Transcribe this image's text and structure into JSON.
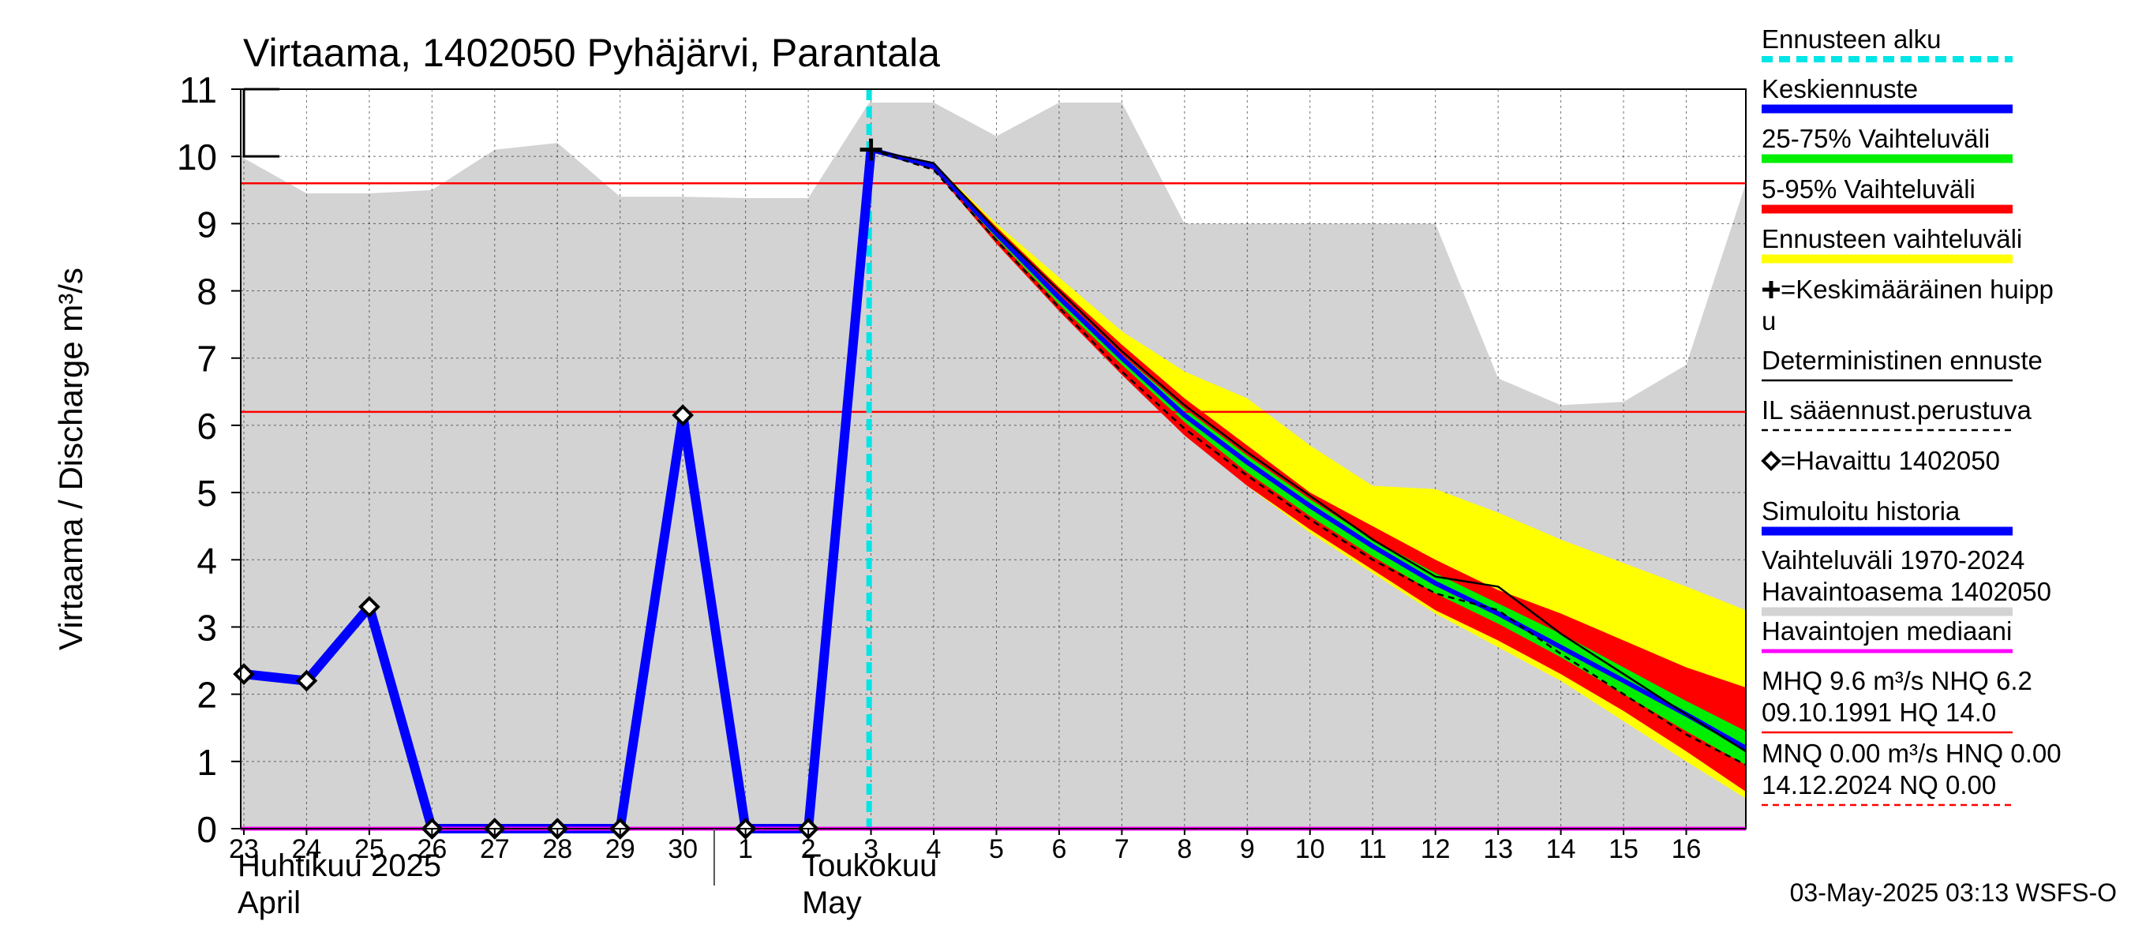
{
  "chart_data": {
    "type": "area",
    "title": "Virtaama, 1402050 Pyhäjärvi, Parantala",
    "ylabel": "Virtaama / Discharge    m³/s",
    "ylim": [
      0,
      11
    ],
    "yticks": [
      0,
      1,
      2,
      3,
      4,
      5,
      6,
      7,
      8,
      9,
      10,
      11
    ],
    "x_domain": [
      -0.05,
      23.95
    ],
    "x_ticks": [
      {
        "x": 0,
        "label": "23"
      },
      {
        "x": 1,
        "label": "24"
      },
      {
        "x": 2,
        "label": "25"
      },
      {
        "x": 3,
        "label": "26"
      },
      {
        "x": 4,
        "label": "27"
      },
      {
        "x": 5,
        "label": "28"
      },
      {
        "x": 6,
        "label": "29"
      },
      {
        "x": 7,
        "label": "30"
      },
      {
        "x": 8,
        "label": "1"
      },
      {
        "x": 9,
        "label": "2"
      },
      {
        "x": 10,
        "label": "3"
      },
      {
        "x": 11,
        "label": "4"
      },
      {
        "x": 12,
        "label": "5"
      },
      {
        "x": 13,
        "label": "6"
      },
      {
        "x": 14,
        "label": "7"
      },
      {
        "x": 15,
        "label": "8"
      },
      {
        "x": 16,
        "label": "9"
      },
      {
        "x": 17,
        "label": "10"
      },
      {
        "x": 18,
        "label": "11"
      },
      {
        "x": 19,
        "label": "12"
      },
      {
        "x": 20,
        "label": "13"
      },
      {
        "x": 21,
        "label": "14"
      },
      {
        "x": 22,
        "label": "15"
      },
      {
        "x": 23,
        "label": "16"
      }
    ],
    "month_labels": [
      {
        "x": 0,
        "fi": "Huhtikuu  2025",
        "en": "April"
      },
      {
        "x": 9,
        "fi": "Toukokuu",
        "en": "May"
      }
    ],
    "month_divider_x": 7.5,
    "forecast_start_x": 9.97,
    "historical_range": {
      "x": [
        -0.05,
        1,
        2,
        3,
        4,
        5,
        6,
        7,
        8,
        9,
        9.97,
        11,
        12,
        13,
        14,
        15,
        16,
        17,
        18,
        19,
        20,
        21,
        22,
        23,
        23.95
      ],
      "upper": [
        10.0,
        9.45,
        9.45,
        9.5,
        10.1,
        10.2,
        9.4,
        9.4,
        9.38,
        9.38,
        10.8,
        10.8,
        10.3,
        10.8,
        10.8,
        9.0,
        9.0,
        9.0,
        9.0,
        9.0,
        6.7,
        6.3,
        6.35,
        6.9,
        9.6
      ],
      "lower": [
        0,
        0,
        0,
        0,
        0,
        0,
        0,
        0,
        0,
        0,
        0,
        0,
        0,
        0,
        0,
        0,
        0,
        0,
        0,
        0,
        0,
        0,
        0,
        0,
        0
      ]
    },
    "forecast_range": {
      "x": [
        10,
        11,
        12,
        13,
        14,
        15,
        16,
        17,
        18,
        19,
        20,
        21,
        22,
        23,
        23.95
      ],
      "upper": [
        10.1,
        9.9,
        9.0,
        8.2,
        7.4,
        6.8,
        6.4,
        5.7,
        5.1,
        5.05,
        4.7,
        4.3,
        3.95,
        3.6,
        3.25
      ],
      "lower": [
        10.1,
        9.8,
        8.7,
        7.7,
        6.8,
        5.9,
        5.1,
        4.4,
        3.8,
        3.2,
        2.7,
        2.2,
        1.6,
        1.0,
        0.45
      ]
    },
    "range_5_95": {
      "x": [
        10,
        11,
        12,
        13,
        14,
        15,
        16,
        17,
        18,
        19,
        20,
        21,
        22,
        23,
        23.95
      ],
      "upper": [
        10.1,
        9.9,
        8.95,
        8.05,
        7.2,
        6.4,
        5.7,
        5.0,
        4.5,
        4.0,
        3.55,
        3.2,
        2.8,
        2.4,
        2.1
      ],
      "lower": [
        10.1,
        9.8,
        8.7,
        7.7,
        6.75,
        5.85,
        5.1,
        4.45,
        3.85,
        3.25,
        2.8,
        2.3,
        1.75,
        1.15,
        0.55
      ]
    },
    "range_25_75": {
      "x": [
        10,
        11,
        12,
        13,
        14,
        15,
        16,
        17,
        18,
        19,
        20,
        21,
        22,
        23,
        23.95
      ],
      "upper": [
        10.1,
        9.88,
        8.88,
        7.95,
        7.05,
        6.25,
        5.55,
        4.9,
        4.3,
        3.8,
        3.35,
        2.9,
        2.4,
        1.9,
        1.45
      ],
      "lower": [
        10.1,
        9.82,
        8.78,
        7.8,
        6.9,
        6.05,
        5.3,
        4.65,
        4.05,
        3.5,
        3.05,
        2.55,
        2.0,
        1.45,
        0.95
      ]
    },
    "series": [
      {
        "name": "Simuloitu historia",
        "color": "#0000ff",
        "x": [
          0,
          1,
          2,
          3,
          4,
          5,
          6,
          7,
          8,
          9,
          10
        ],
        "y": [
          2.3,
          2.2,
          3.3,
          0.0,
          0.0,
          0.0,
          0.0,
          6.15,
          0.0,
          0.0,
          10.1
        ]
      },
      {
        "name": "Keskiennuste",
        "color": "#0000ff",
        "x": [
          10,
          11,
          12,
          13,
          14,
          15,
          16,
          17,
          18,
          19,
          20,
          21,
          22,
          23,
          23.95
        ],
        "y": [
          10.1,
          9.85,
          8.85,
          7.9,
          7.0,
          6.15,
          5.45,
          4.8,
          4.2,
          3.65,
          3.2,
          2.7,
          2.2,
          1.7,
          1.2
        ]
      },
      {
        "name": "Deterministinen ennuste",
        "color": "#000000",
        "x": [
          10,
          11,
          12,
          13,
          14,
          15,
          16,
          17,
          18,
          19,
          20,
          21,
          22,
          23,
          23.95
        ],
        "y": [
          10.1,
          9.9,
          8.9,
          8.0,
          7.1,
          6.3,
          5.6,
          4.95,
          4.3,
          3.75,
          3.6,
          2.9,
          2.3,
          1.7,
          1.15
        ]
      },
      {
        "name": "IL sääennust.perustuva",
        "color": "#000000",
        "dashed": true,
        "x": [
          10,
          11,
          12,
          13,
          14,
          15,
          16,
          17,
          18,
          19,
          20,
          21,
          22,
          23,
          23.95
        ],
        "y": [
          10.1,
          9.8,
          8.75,
          7.75,
          6.8,
          5.95,
          5.25,
          4.6,
          4.0,
          3.5,
          3.25,
          2.6,
          2.0,
          1.4,
          0.95
        ]
      }
    ],
    "observed": {
      "name": "=Havaittu 1402050",
      "x": [
        0,
        1,
        2,
        3,
        4,
        5,
        6,
        7,
        8,
        9
      ],
      "y": [
        2.3,
        2.2,
        3.3,
        0.0,
        0.0,
        0.0,
        0.0,
        6.15,
        0.0,
        0.0
      ]
    },
    "mean_peak": {
      "x": 10,
      "y": 10.1
    },
    "mhq_line": 9.6,
    "nhq_line": 6.2,
    "median_line": 0.0,
    "peak_bracket": {
      "y_top": 11,
      "y_bottom": 10
    },
    "legend": [
      {
        "key": "forecast_start",
        "label": "Ennusteen alku",
        "color": "#00e5e5",
        "style": "dashed"
      },
      {
        "key": "mean_forecast",
        "label": "Keskiennuste",
        "color": "#0000ff",
        "style": "thick"
      },
      {
        "key": "range_25_75",
        "label": "25-75% Vaihteluväli",
        "color": "#00ee00",
        "style": "thick"
      },
      {
        "key": "range_5_95",
        "label": "5-95% Vaihteluväli",
        "color": "#ff0000",
        "style": "thick"
      },
      {
        "key": "forecast_range",
        "label": "Ennusteen vaihteluväli",
        "color": "#ffff00",
        "style": "thick"
      },
      {
        "key": "mean_peak",
        "label": "=Keskimääräinen huipp",
        "label2": "u",
        "color": "#000000",
        "style": "none"
      },
      {
        "key": "deterministic",
        "label": "Deterministinen ennuste",
        "color": "#000000",
        "style": "thin"
      },
      {
        "key": "il_forecast",
        "label": "IL sääennust.perustuva",
        "color": "#000000",
        "style": "dashed-thin"
      },
      {
        "key": "observed",
        "label": "=Havaittu 1402050",
        "color": "#000000",
        "style": "none"
      },
      {
        "key": "simulated",
        "label": "Simuloitu historia",
        "color": "#0000ff",
        "style": "thick"
      },
      {
        "key": "hist_range",
        "label": "Vaihteluväli 1970-2024",
        "label2": " Havaintoasema 1402050",
        "color": "#d3d3d3",
        "style": "thick"
      },
      {
        "key": "median",
        "label": "Havaintojen mediaani",
        "color": "#ff00ff",
        "style": "medium"
      },
      {
        "key": "mhq",
        "label": "MHQ  9.6 m³/s NHQ  6.2",
        "label2": "09.10.1991 HQ 14.0",
        "color": "#ff0000",
        "style": "thin"
      },
      {
        "key": "mnq",
        "label": "MNQ 0.00 m³/s HNQ 0.00",
        "label2": "14.12.2024 NQ 0.00",
        "color": "#ff0000",
        "style": "dashed-thin"
      }
    ],
    "footer": "03-May-2025 03:13 WSFS-O"
  }
}
